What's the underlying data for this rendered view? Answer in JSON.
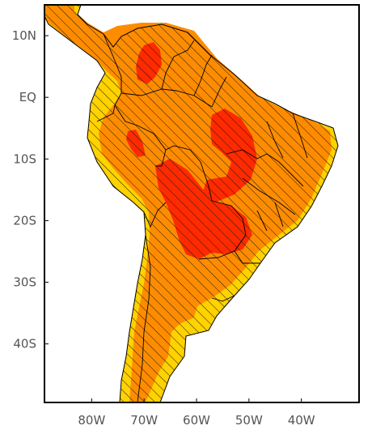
{
  "map": {
    "lat_labels": [
      "10N",
      "EQ",
      "10S",
      "20S",
      "30S",
      "40S"
    ],
    "lat_values": [
      10,
      0,
      -10,
      -20,
      -30,
      -40
    ],
    "lon_labels": [
      "80W",
      "70W",
      "60W",
      "50W",
      "40W"
    ],
    "lon_values": [
      -80,
      -70,
      -60,
      -50,
      -40
    ],
    "lon_range": [
      -89,
      -29
    ],
    "lat_range": [
      -49.5,
      15
    ],
    "colors": {
      "ocean": "#ffffff",
      "light": "#ffd200",
      "medium": "#ff8c00",
      "high": "#ff2a00",
      "hatch": "#1a1a1a",
      "borders": "#000000"
    }
  }
}
